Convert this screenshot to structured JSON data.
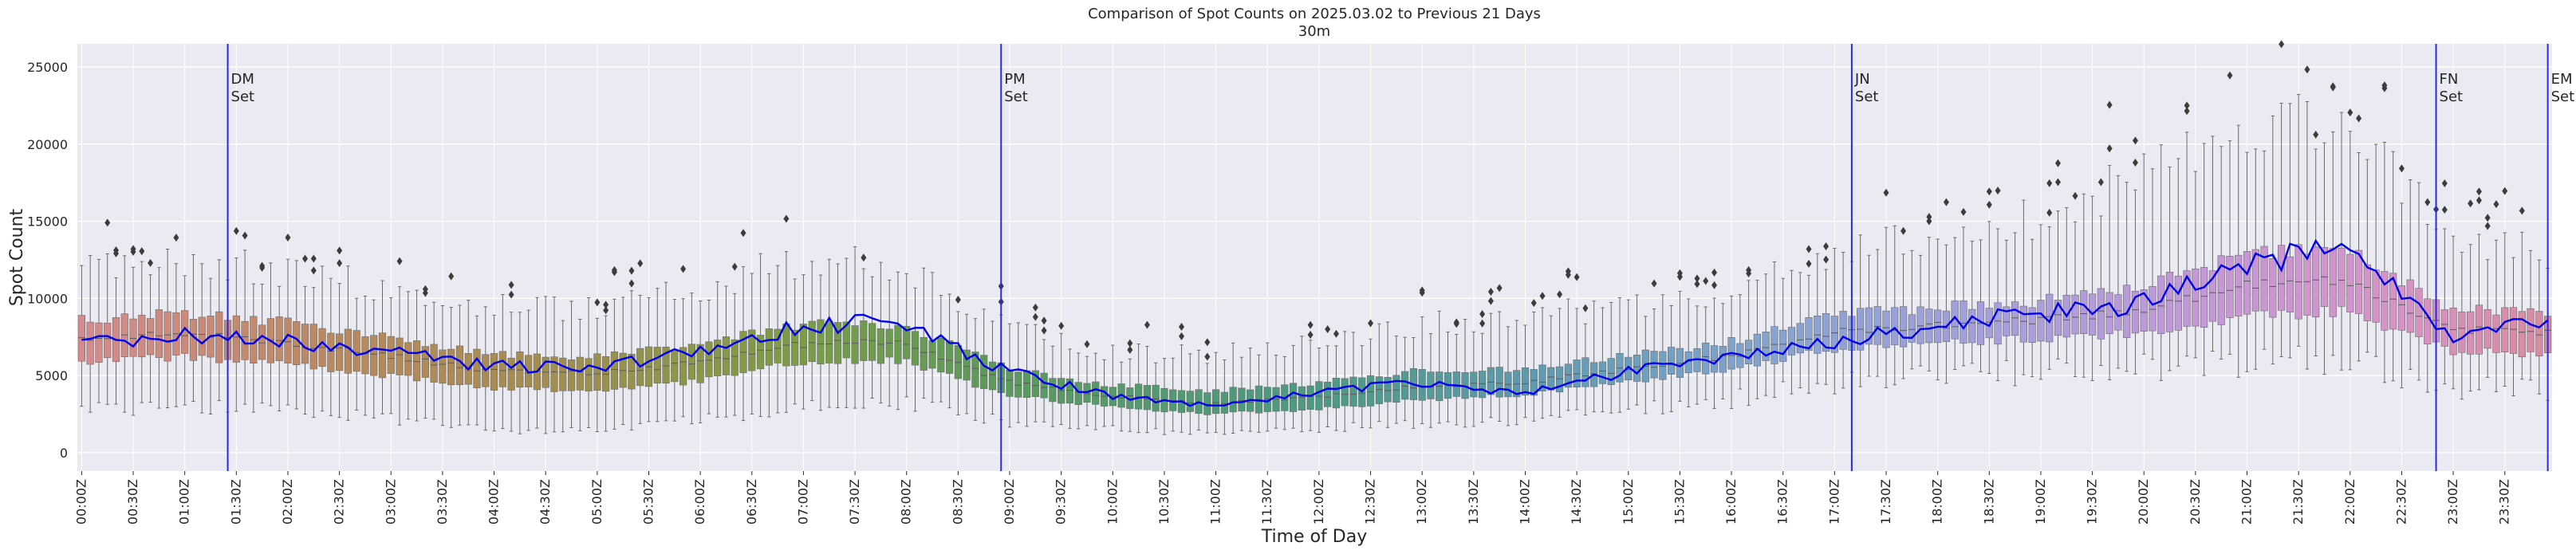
{
  "chart_data": {
    "type": "box",
    "title": "Comparison of Spot Counts on 2025.03.02 to Previous 21 Days",
    "subtitle": "30m",
    "xlabel": "Time of Day",
    "ylabel": "Spot Count",
    "ylim": [
      -1200,
      26500
    ],
    "y_ticks": [
      0,
      5000,
      10000,
      15000,
      20000,
      25000
    ],
    "bin_minutes": 5,
    "x_tick_labels": [
      "00:00Z",
      "00:30Z",
      "01:00Z",
      "01:30Z",
      "02:00Z",
      "02:30Z",
      "03:00Z",
      "03:30Z",
      "04:00Z",
      "04:30Z",
      "05:00Z",
      "05:30Z",
      "06:00Z",
      "06:30Z",
      "07:00Z",
      "07:30Z",
      "08:00Z",
      "08:30Z",
      "09:00Z",
      "09:30Z",
      "10:00Z",
      "10:30Z",
      "11:00Z",
      "11:30Z",
      "12:00Z",
      "12:30Z",
      "13:00Z",
      "13:30Z",
      "14:00Z",
      "14:30Z",
      "15:00Z",
      "15:30Z",
      "16:00Z",
      "16:30Z",
      "17:00Z",
      "17:30Z",
      "18:00Z",
      "18:30Z",
      "19:00Z",
      "19:30Z",
      "20:00Z",
      "20:30Z",
      "21:00Z",
      "21:30Z",
      "22:00Z",
      "22:30Z",
      "23:00Z",
      "23:30Z"
    ],
    "grid": true,
    "line_color": "#0000ee",
    "vline_color": "#2a2ae0",
    "annotations": [
      {
        "line1": "DM",
        "line2": "Set",
        "time": "01:25Z"
      },
      {
        "line1": "PM",
        "line2": "Set",
        "time": "08:55Z"
      },
      {
        "line1": "JN",
        "line2": "Set",
        "time": "17:10Z"
      },
      {
        "line1": "FN",
        "line2": "Set",
        "time": "22:50Z"
      },
      {
        "line1": "EM",
        "line2": "Set",
        "time": "23:55Z"
      }
    ],
    "profile": {
      "hours": [
        0,
        1,
        2,
        3,
        4,
        5,
        6,
        7,
        8,
        9,
        10,
        11,
        12,
        13,
        14,
        15,
        16,
        17,
        18,
        19,
        20,
        21,
        22,
        23,
        24
      ],
      "median": [
        7400,
        7700,
        7200,
        6300,
        5300,
        5100,
        5800,
        7000,
        7200,
        4600,
        3700,
        3200,
        3600,
        4300,
        4500,
        5400,
        6200,
        7800,
        8200,
        8600,
        9200,
        10800,
        11200,
        8000,
        7800
      ],
      "q1": [
        5900,
        6200,
        5800,
        5000,
        4200,
        4000,
        4600,
        5900,
        6000,
        3700,
        3000,
        2500,
        2800,
        3400,
        3700,
        4600,
        5300,
        6700,
        7100,
        7400,
        7800,
        8800,
        9200,
        6600,
        6400
      ],
      "q3": [
        8600,
        9000,
        8500,
        7500,
        6400,
        6200,
        7000,
        8300,
        8300,
        5500,
        4400,
        4000,
        4500,
        5300,
        5400,
        6300,
        7100,
        9000,
        9400,
        9800,
        10800,
        12800,
        13400,
        9300,
        9100
      ],
      "low": [
        2800,
        3000,
        2800,
        2200,
        1500,
        1400,
        2100,
        3000,
        3400,
        2000,
        1600,
        1200,
        1500,
        1900,
        2100,
        2800,
        3400,
        4400,
        4900,
        5200,
        5600,
        5800,
        6000,
        4200,
        4100
      ],
      "high": [
        11500,
        12500,
        11800,
        10600,
        9500,
        9200,
        10500,
        12500,
        12200,
        8000,
        6500,
        6300,
        7100,
        8300,
        8700,
        9600,
        10300,
        13000,
        14100,
        15100,
        18000,
        21000,
        22000,
        13800,
        13000
      ],
      "current": [
        7100,
        7600,
        7300,
        6500,
        5600,
        5500,
        6500,
        8200,
        8500,
        5300,
        3700,
        3100,
        3900,
        4500,
        3800,
        5200,
        6000,
        7200,
        8200,
        9000,
        9600,
        12000,
        13500,
        7300,
        8600
      ]
    },
    "color_stops": [
      {
        "hour": 0,
        "color": "#d88a8e"
      },
      {
        "hour": 2.5,
        "color": "#b9895e"
      },
      {
        "hour": 4.5,
        "color": "#a48d4f"
      },
      {
        "hour": 7,
        "color": "#7b9c45"
      },
      {
        "hour": 9,
        "color": "#5a9a5c"
      },
      {
        "hour": 12,
        "color": "#4c9a83"
      },
      {
        "hour": 14,
        "color": "#5d9aac"
      },
      {
        "hour": 16.5,
        "color": "#86a4d2"
      },
      {
        "hour": 18.5,
        "color": "#a59fdc"
      },
      {
        "hour": 20.5,
        "color": "#c397d8"
      },
      {
        "hour": 22.5,
        "color": "#d793c8"
      },
      {
        "hour": 24,
        "color": "#d88a9e"
      }
    ]
  }
}
